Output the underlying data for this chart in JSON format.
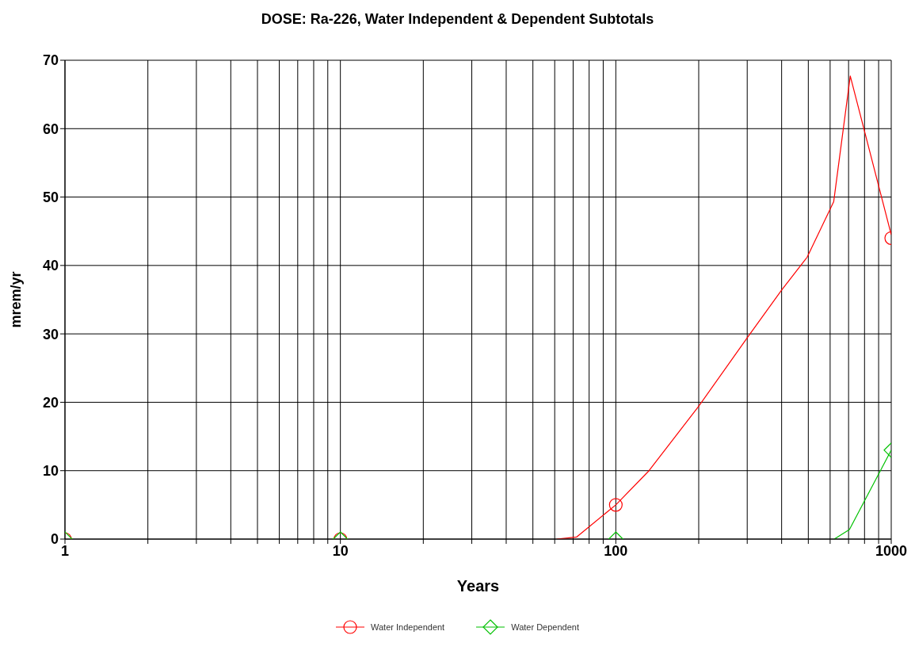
{
  "chart_data": {
    "type": "line",
    "title": "DOSE: Ra-226, Water Independent & Dependent Subtotals",
    "xlabel": "Years",
    "ylabel": "mrem/yr",
    "log": "x",
    "xlim": [
      1,
      1000
    ],
    "xticks": [
      1,
      {
        "value": 2,
        "label": null
      },
      {
        "value": 3,
        "label": null
      },
      {
        "value": 4,
        "label": null
      },
      {
        "value": 5,
        "label": null
      },
      {
        "value": 6,
        "label": null
      },
      {
        "value": 7,
        "label": null
      },
      {
        "value": 8,
        "label": null
      },
      {
        "value": 9,
        "label": null
      },
      10,
      {
        "value": 20,
        "label": null
      },
      {
        "value": 30,
        "label": null
      },
      {
        "value": 40,
        "label": null
      },
      {
        "value": 50,
        "label": null
      },
      {
        "value": 60,
        "label": null
      },
      {
        "value": 70,
        "label": null
      },
      {
        "value": 80,
        "label": null
      },
      {
        "value": 90,
        "label": null
      },
      100,
      {
        "value": 200,
        "label": null
      },
      {
        "value": 300,
        "label": null
      },
      {
        "value": 400,
        "label": null
      },
      {
        "value": 500,
        "label": null
      },
      {
        "value": 600,
        "label": null
      },
      {
        "value": 700,
        "label": null
      },
      {
        "value": 800,
        "label": null
      },
      {
        "value": 900,
        "label": null
      },
      1000
    ],
    "ylim": [
      0,
      70
    ],
    "yticks": [
      0,
      10,
      20,
      30,
      40,
      50,
      60,
      70
    ],
    "grid": true,
    "legend": "bottom",
    "line_style": "solid",
    "series": [
      {
        "name": "Water Independent",
        "marker": "none",
        "color": "#ff0000",
        "x": [
          61,
          72,
          100,
          132,
          199,
          301,
          400,
          495,
          618,
          710,
          1000
        ],
        "values": [
          0,
          0.3,
          5,
          10,
          19.3,
          29.5,
          36.4,
          41.2,
          49.3,
          67.7,
          44.5
        ]
      },
      {
        "name": "Water Dependent",
        "marker": "none",
        "color": "#00c000",
        "x": [
          621,
          705,
          1000
        ],
        "values": [
          0,
          1.4,
          13
        ]
      },
      {
        "type": "scatter",
        "marker": "circle",
        "color": "#ff0000",
        "x": [
          1,
          10,
          100,
          1000
        ],
        "values": [
          0,
          0,
          5,
          44
        ]
      },
      {
        "type": "scatter",
        "marker": "diamond",
        "color": "#00c000",
        "x": [
          1,
          10,
          100,
          1000
        ],
        "values": [
          0,
          0,
          0,
          13
        ]
      }
    ]
  }
}
